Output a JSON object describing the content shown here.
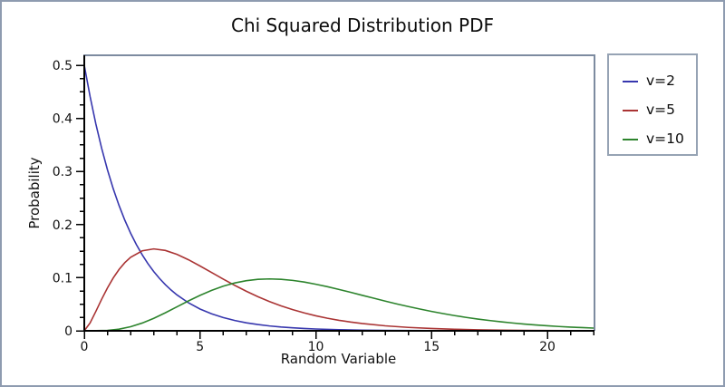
{
  "figure": {
    "background": "#ffffff",
    "outer_border_color": "#8e9bb0",
    "frame_color": "#7d8ba0",
    "axis_color": "#000000"
  },
  "chart_data": {
    "type": "line",
    "title": "Chi Squared Distribution PDF",
    "xlabel": "Random Variable",
    "ylabel": "Probability",
    "xlim": [
      0,
      22.05
    ],
    "ylim": [
      0,
      0.519
    ],
    "grid": false,
    "legend_position": "outside-top-right",
    "x_ticks": {
      "major_values": [
        0,
        5,
        10,
        15,
        20
      ],
      "major_labels": [
        "0",
        "5",
        "10",
        "15",
        "20"
      ],
      "minor_step": 1,
      "minor_max": 22
    },
    "y_ticks": {
      "major_values": [
        0,
        0.1,
        0.2,
        0.3,
        0.4,
        0.5
      ],
      "major_labels": [
        "0",
        "0.1",
        "0.2",
        "0.3",
        "0.4",
        "0.5"
      ],
      "minor_step": 0.025,
      "minor_max": 0.5
    },
    "series": [
      {
        "name": "v=2",
        "color": "#3737ae",
        "x": [
          0,
          0.25,
          0.5,
          0.75,
          1,
          1.25,
          1.5,
          1.75,
          2,
          2.25,
          2.5,
          2.75,
          3,
          3.25,
          3.5,
          3.75,
          4,
          4.5,
          5,
          5.5,
          6,
          6.5,
          7,
          7.5,
          8,
          8.5,
          9,
          9.5,
          10,
          11,
          12,
          13,
          14,
          15,
          16,
          17,
          18,
          19,
          20,
          21,
          22
        ],
        "y": [
          0.5,
          0.4413,
          0.3894,
          0.3437,
          0.3033,
          0.2676,
          0.2362,
          0.2084,
          0.1839,
          0.1623,
          0.1433,
          0.1264,
          0.1116,
          0.0985,
          0.0869,
          0.0767,
          0.0677,
          0.0527,
          0.041,
          0.032,
          0.0249,
          0.0194,
          0.0151,
          0.0118,
          0.0092,
          0.0071,
          0.0056,
          0.0043,
          0.0034,
          0.002,
          0.0012,
          0.0008,
          0.0005,
          0.0003,
          0.0002,
          0.0001,
          0.0001,
          5e-05,
          3e-05,
          2e-05,
          1e-05
        ]
      },
      {
        "name": "v=5",
        "color": "#aa3434",
        "x": [
          0,
          0.25,
          0.5,
          0.75,
          1,
          1.25,
          1.5,
          1.75,
          2,
          2.5,
          3,
          3.5,
          4,
          4.5,
          5,
          5.5,
          6,
          6.5,
          7,
          7.5,
          8,
          8.5,
          9,
          9.5,
          10,
          10.5,
          11,
          11.5,
          12,
          13,
          14,
          15,
          16,
          17,
          18,
          19,
          20,
          21,
          22
        ],
        "y": [
          0,
          0.0147,
          0.0366,
          0.0594,
          0.0807,
          0.0995,
          0.1154,
          0.1283,
          0.1384,
          0.1506,
          0.1542,
          0.1513,
          0.144,
          0.1338,
          0.122,
          0.1097,
          0.0973,
          0.0855,
          0.0744,
          0.0642,
          0.0551,
          0.047,
          0.0399,
          0.0337,
          0.0283,
          0.0237,
          0.0198,
          0.0165,
          0.0137,
          0.0094,
          0.0064,
          0.0043,
          0.0029,
          0.0019,
          0.0013,
          0.0008,
          0.0005,
          0.0004,
          0.0002
        ]
      },
      {
        "name": "v=10",
        "color": "#2d842d",
        "x": [
          0,
          1,
          1.5,
          2,
          2.5,
          3,
          3.5,
          4,
          4.5,
          5,
          5.5,
          6,
          6.5,
          7,
          7.5,
          8,
          8.5,
          9,
          9.5,
          10,
          10.5,
          11,
          11.5,
          12,
          12.5,
          13,
          13.5,
          14,
          14.5,
          15,
          15.5,
          16,
          16.5,
          17,
          17.5,
          18,
          18.5,
          19,
          19.5,
          20,
          20.5,
          21,
          21.5,
          22
        ],
        "y": [
          0,
          0.0008,
          0.0031,
          0.0077,
          0.0146,
          0.0235,
          0.0339,
          0.0451,
          0.0563,
          0.0668,
          0.0762,
          0.084,
          0.0901,
          0.0944,
          0.0969,
          0.0977,
          0.097,
          0.0949,
          0.0918,
          0.0877,
          0.0831,
          0.0779,
          0.0725,
          0.0669,
          0.0614,
          0.0559,
          0.0506,
          0.0456,
          0.0409,
          0.0365,
          0.0324,
          0.0286,
          0.0252,
          0.0221,
          0.0194,
          0.0169,
          0.0147,
          0.0127,
          0.011,
          0.0095,
          0.0081,
          0.007,
          0.006,
          0.0051
        ]
      }
    ]
  }
}
